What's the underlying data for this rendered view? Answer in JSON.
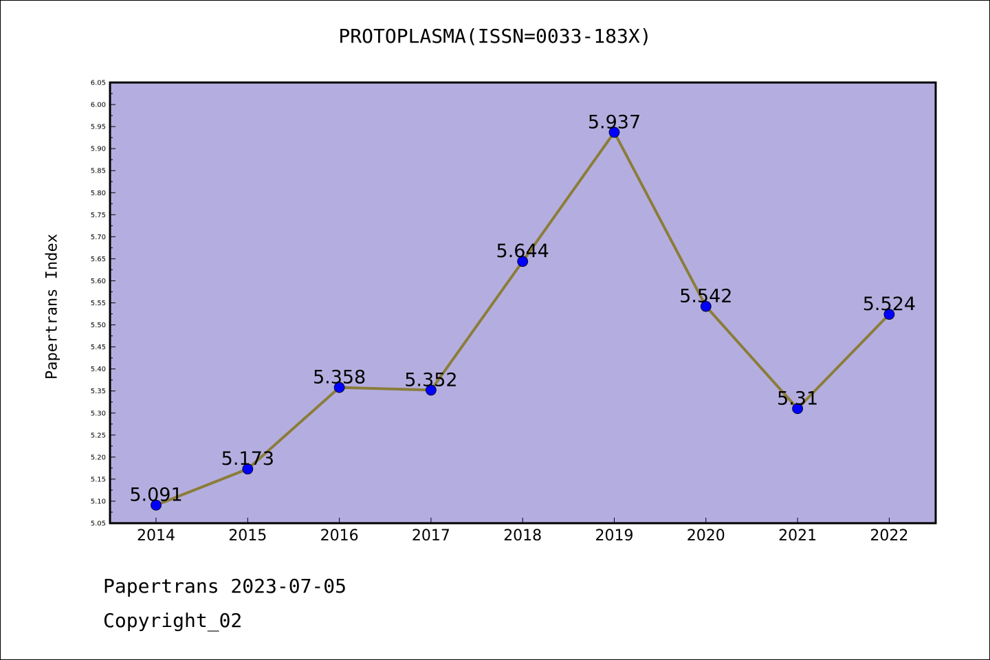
{
  "chart_data": {
    "type": "line",
    "title": "PROTOPLASMA(ISSN=0033-183X)",
    "xlabel": "",
    "ylabel": "Papertrans Index",
    "categories": [
      "2014",
      "2015",
      "2016",
      "2017",
      "2018",
      "2019",
      "2020",
      "2021",
      "2022"
    ],
    "series": [
      {
        "values": [
          5.091,
          5.173,
          5.358,
          5.352,
          5.644,
          5.937,
          5.542,
          5.31,
          5.524
        ],
        "labels": [
          "5.091",
          "5.173",
          "5.358",
          "5.352",
          "5.644",
          "5.937",
          "5.542",
          "5.31",
          "5.524"
        ]
      }
    ],
    "ylim": [
      5.05,
      6.05
    ],
    "yticks": [
      "5.05",
      "5.10",
      "5.15",
      "5.20",
      "5.25",
      "5.30",
      "5.35",
      "5.40",
      "5.45",
      "5.50",
      "5.55",
      "5.60",
      "5.65",
      "5.70",
      "5.75",
      "5.80",
      "5.85",
      "5.90",
      "5.95",
      "6.00",
      "6.05"
    ],
    "grid": false,
    "legend": "none",
    "colors": {
      "plot_background": "#b4aee0",
      "line": "#8b7d3a",
      "marker": "#0000ff"
    }
  },
  "footer": {
    "date_line": "Papertrans 2023-07-05",
    "copyright": "Copyright_02"
  }
}
